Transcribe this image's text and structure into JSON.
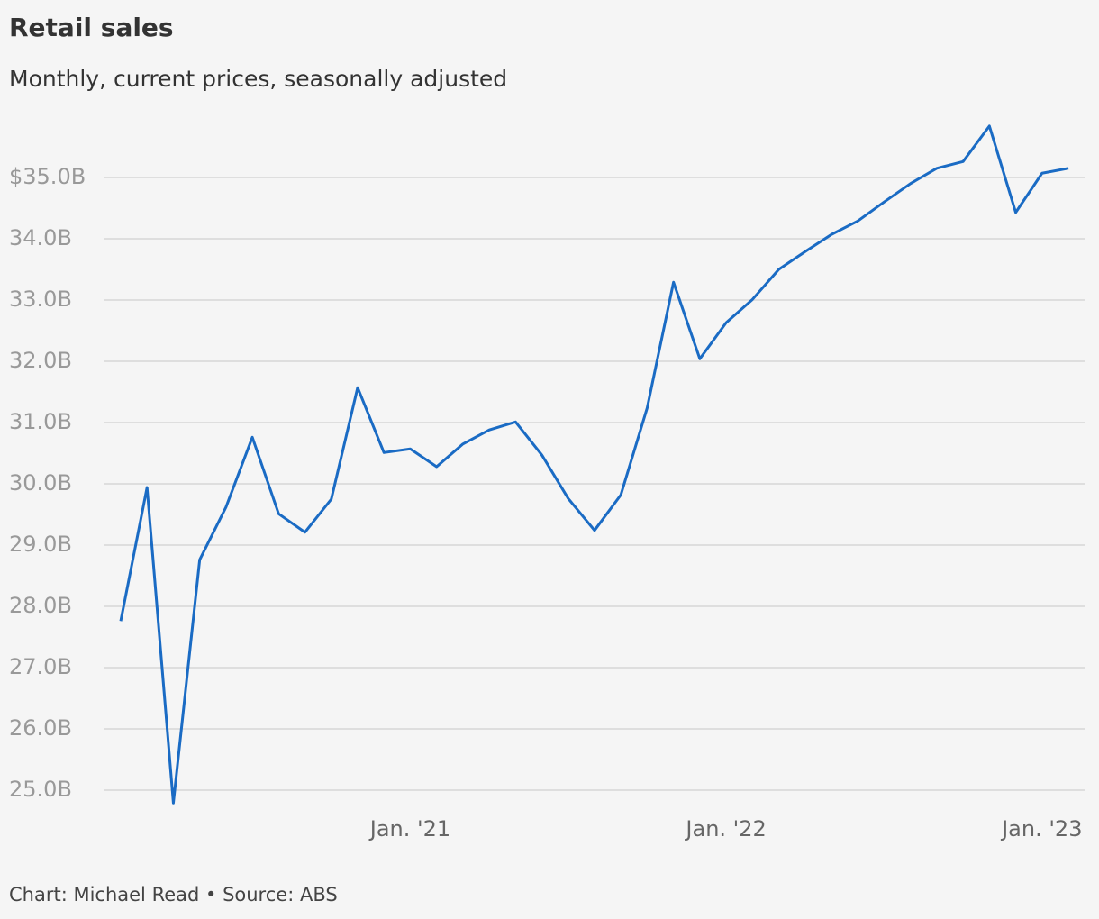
{
  "chart_data": {
    "type": "line",
    "title": "Retail sales",
    "subtitle": "Monthly, current prices, seasonally adjusted",
    "source": "Chart: Michael Read • Source: ABS",
    "categories": [
      null,
      null,
      null,
      null,
      null,
      null,
      null,
      null,
      null,
      null,
      null,
      "Jan. '21",
      null,
      null,
      null,
      null,
      null,
      null,
      null,
      null,
      null,
      null,
      null,
      "Jan. '22",
      null,
      null,
      null,
      null,
      null,
      null,
      null,
      null,
      null,
      null,
      null,
      "Jan. '23",
      null
    ],
    "series": [
      {
        "name": "Retail sales",
        "color": "#1a6bc4",
        "values": [
          27.76,
          29.94,
          24.79,
          28.76,
          29.62,
          30.76,
          29.51,
          29.21,
          29.75,
          31.57,
          30.51,
          30.57,
          30.28,
          30.65,
          30.88,
          31.01,
          30.47,
          29.76,
          29.24,
          29.82,
          31.24,
          33.29,
          32.04,
          32.63,
          33.01,
          33.5,
          33.79,
          34.07,
          34.29,
          34.6,
          34.9,
          35.15,
          35.26,
          35.84,
          34.43,
          35.07,
          35.15
        ]
      }
    ],
    "ylim": [
      24.6,
      36.2
    ],
    "yticks": [
      {
        "value": 25,
        "label": "25.0B"
      },
      {
        "value": 26,
        "label": "26.0B"
      },
      {
        "value": 27,
        "label": "27.0B"
      },
      {
        "value": 28,
        "label": "28.0B"
      },
      {
        "value": 29,
        "label": "29.0B"
      },
      {
        "value": 30,
        "label": "30.0B"
      },
      {
        "value": 31,
        "label": "31.0B"
      },
      {
        "value": 32,
        "label": "32.0B"
      },
      {
        "value": 33,
        "label": "33.0B"
      },
      {
        "value": 34,
        "label": "34.0B"
      },
      {
        "value": 35,
        "label": "$35.0B"
      }
    ],
    "grid": true
  }
}
